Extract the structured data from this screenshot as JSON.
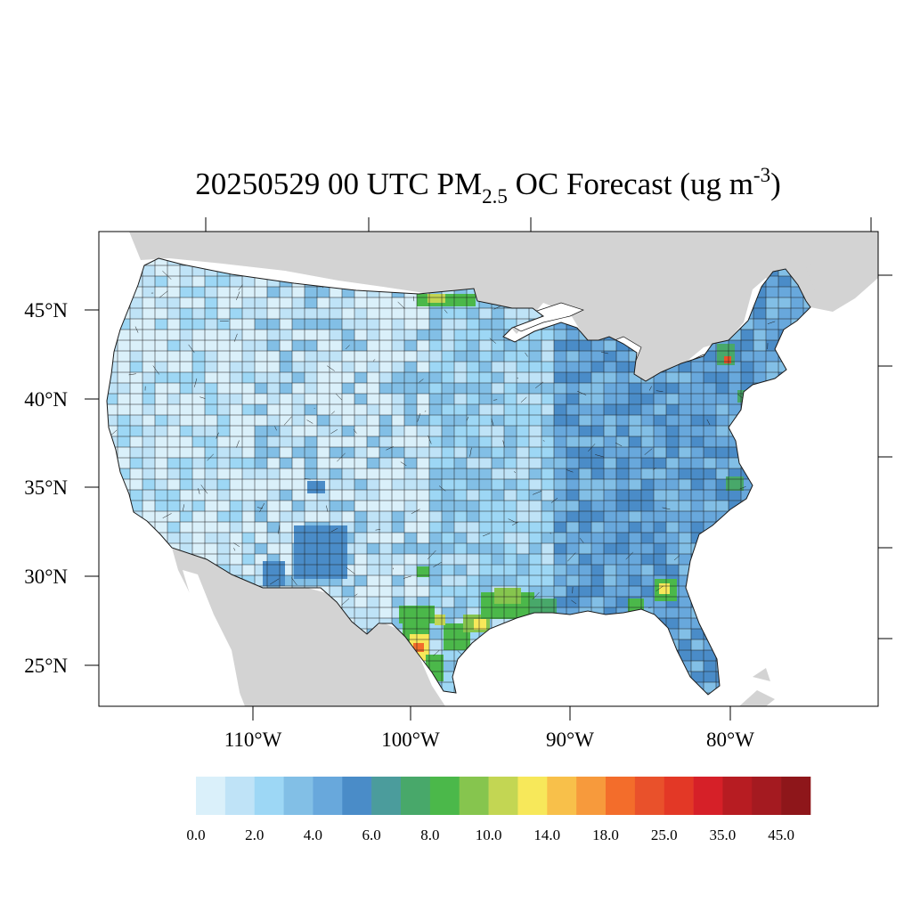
{
  "title": {
    "prefix": "20250529 00 UTC PM",
    "subscript": "2.5",
    "middle": " OC Forecast (ug m",
    "superscript": "-3",
    "suffix": ")"
  },
  "colors": {
    "land_outside": "#d3d3d3",
    "water": "#ffffff",
    "county_border": "#1a1a1a"
  },
  "map_data": {
    "projection": "Lambert conformal",
    "lat_ticks": [
      "25°N",
      "30°N",
      "35°N",
      "40°N",
      "45°N"
    ],
    "lon_ticks": [
      "110°W",
      "100°W",
      "90°W",
      "80°W"
    ],
    "hotspots": [
      {
        "name": "south-texas",
        "lat": 27.5,
        "lon": -99.0,
        "level": 14.0
      },
      {
        "name": "east-texas-louisiana",
        "lat": 30.5,
        "lon": -94.5,
        "level": 10.0
      },
      {
        "name": "north-dakota",
        "lat": 48.5,
        "lon": -99.0,
        "level": 10.0
      },
      {
        "name": "southern-georgia",
        "lat": 31.3,
        "lon": -84.0,
        "level": 14.0
      },
      {
        "name": "southeast-alabama",
        "lat": 31.0,
        "lon": -86.0,
        "level": 8.0
      },
      {
        "name": "new-york",
        "lat": 43.3,
        "lon": -75.8,
        "level": 25.0
      },
      {
        "name": "new-jersey",
        "lat": 40.3,
        "lon": -74.5,
        "level": 8.0
      },
      {
        "name": "north-carolina",
        "lat": 35.5,
        "lon": -77.2,
        "level": 8.0
      },
      {
        "name": "oklahoma",
        "lat": 34.8,
        "lon": -98.6,
        "level": 8.0
      }
    ]
  },
  "colorbar": {
    "tick_labels": [
      "0.0",
      "2.0",
      "4.0",
      "6.0",
      "8.0",
      "10.0",
      "14.0",
      "18.0",
      "25.0",
      "35.0",
      "45.0"
    ],
    "colors": [
      "#daf0fa",
      "#bfe3f7",
      "#9dd7f5",
      "#82bfe6",
      "#68a8dc",
      "#4a8cc8",
      "#4b9c9c",
      "#48a86a",
      "#4bb84a",
      "#86c54e",
      "#c3d653",
      "#f7e85a",
      "#f8c04a",
      "#f79a3c",
      "#f36d2b",
      "#e9512b",
      "#e33826",
      "#d62028",
      "#b71c22",
      "#a41a20",
      "#8e161a"
    ]
  }
}
